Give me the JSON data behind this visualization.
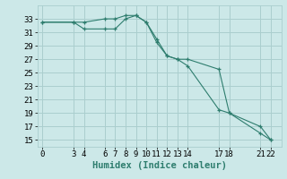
{
  "xlabel": "Humidex (Indice chaleur)",
  "line1_x": [
    0,
    3,
    4,
    6,
    7,
    8,
    9,
    10,
    11,
    12,
    13,
    14,
    17,
    18,
    21,
    22
  ],
  "line1_y": [
    32.5,
    32.5,
    32.5,
    33.0,
    33.0,
    33.5,
    33.5,
    32.5,
    29.5,
    27.5,
    27.0,
    26.0,
    19.5,
    19.0,
    16.0,
    15.0
  ],
  "line2_x": [
    0,
    3,
    4,
    6,
    7,
    8,
    9,
    10,
    11,
    12,
    13,
    14,
    17,
    18,
    21,
    22
  ],
  "line2_y": [
    32.5,
    32.5,
    31.5,
    31.5,
    31.5,
    33.0,
    33.5,
    32.5,
    30.0,
    27.5,
    27.0,
    27.0,
    25.5,
    19.0,
    17.0,
    15.0
  ],
  "line_color": "#2e7d6e",
  "marker": "+",
  "bg_color": "#cce8e8",
  "grid_color": "#aacece",
  "xlim": [
    -0.5,
    23
  ],
  "ylim": [
    14,
    35
  ],
  "xticks": [
    0,
    3,
    4,
    6,
    7,
    8,
    9,
    10,
    11,
    12,
    13,
    14,
    17,
    18,
    21,
    22
  ],
  "yticks": [
    15,
    17,
    19,
    21,
    23,
    25,
    27,
    29,
    31,
    33
  ],
  "tick_fontsize": 6.5,
  "xlabel_fontsize": 7.5
}
